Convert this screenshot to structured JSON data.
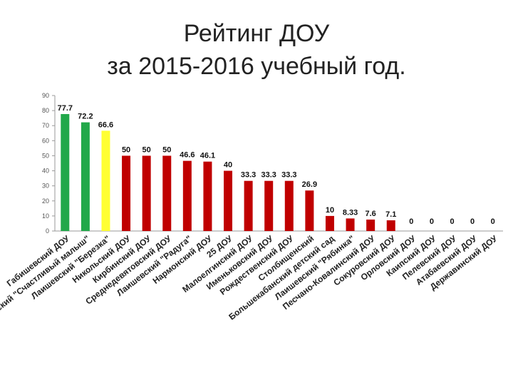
{
  "title_line1": "Рейтинг ДОУ",
  "title_line2": "за 2015-2016 учебный год.",
  "chart_data": {
    "type": "bar",
    "ylim": [
      0,
      90
    ],
    "yticks": [
      0,
      10,
      20,
      30,
      40,
      50,
      60,
      70,
      80,
      90
    ],
    "grid": false,
    "legend": "none",
    "categories": [
      "Габишевский ДОУ",
      "Лаишевский \"Счастливый малыш\"",
      "Лаишевский \"Березка\"",
      "Никольский ДОУ",
      "Кирбинский ДОУ",
      "Среднедевятовский ДОУ",
      "Лаишевский \"Радуга\"",
      "Нармонский ДОУ",
      "25 ДОУ",
      "Малоелгинский ДОУ",
      "Именьковский ДОУ",
      "Рождественский ДОУ",
      "Столбищенский",
      "Большекабанский детский сад",
      "Лаишевский \"Рябинка\"",
      "Песчано-Ковалинский ДОУ",
      "Сокуровский ДОУ",
      "Орловский ДОУ",
      "Каипский ДОУ",
      "Пелевский ДОУ",
      "Атабаевский ДОУ",
      "Державинский ДОУ"
    ],
    "values": [
      77.7,
      72.2,
      66.6,
      50,
      50,
      50,
      46.6,
      46.1,
      40,
      33.3,
      33.3,
      33.3,
      26.9,
      10,
      8.33,
      7.6,
      7.1,
      0,
      0,
      0,
      0,
      0
    ],
    "value_labels": [
      "77.7",
      "72.2",
      "66.6",
      "50",
      "50",
      "50",
      "46.6",
      "46.1",
      "40",
      "33.3",
      "33.3",
      "33.3",
      "26.9",
      "10",
      "8.33",
      "7.6",
      "7.1",
      "0",
      "0",
      "0",
      "0",
      "0"
    ],
    "colors": [
      "#22a84a",
      "#22a84a",
      "#ffff33",
      "#c00000",
      "#c00000",
      "#c00000",
      "#c00000",
      "#c00000",
      "#c00000",
      "#c00000",
      "#c00000",
      "#c00000",
      "#c00000",
      "#c00000",
      "#c00000",
      "#c00000",
      "#c00000",
      "#c00000",
      "#c00000",
      "#c00000",
      "#c00000",
      "#c00000"
    ]
  }
}
